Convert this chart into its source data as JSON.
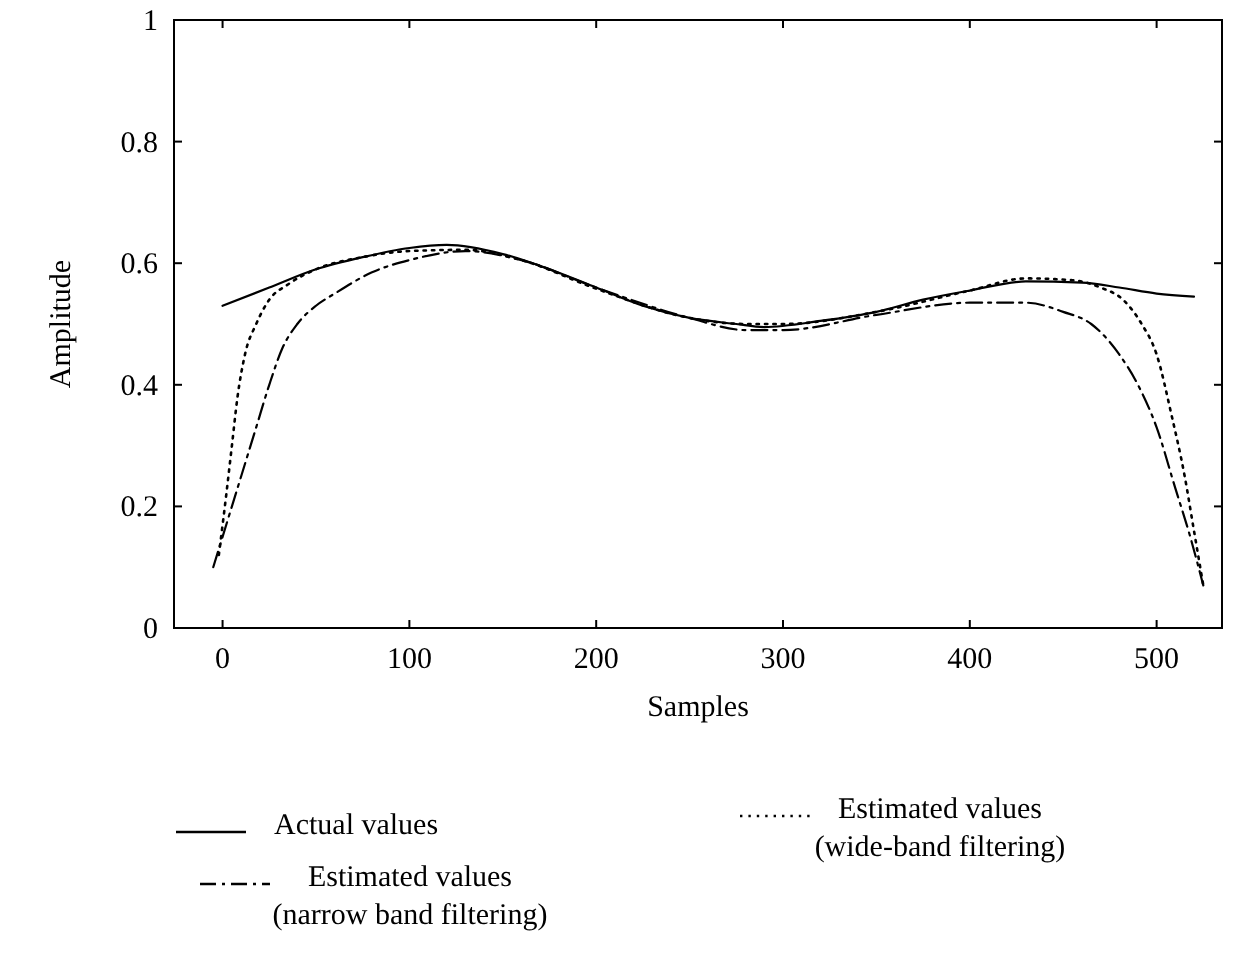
{
  "chart_data": {
    "type": "line",
    "xlabel": "Samples",
    "ylabel": "Amplitude",
    "xlim": [
      -26,
      535
    ],
    "ylim": [
      0,
      1
    ],
    "xticks": [
      0,
      100,
      200,
      300,
      400,
      500
    ],
    "yticks": [
      0,
      0.2,
      0.4,
      0.6,
      0.8,
      1
    ],
    "grid": false,
    "legend": "bottom",
    "series": [
      {
        "name": "Actual values",
        "color": "#000000",
        "line_style": "solid",
        "x": [
          0,
          25,
          50,
          75,
          100,
          120,
          150,
          175,
          200,
          225,
          250,
          275,
          290,
          320,
          350,
          375,
          400,
          430,
          460,
          480,
          500,
          520
        ],
        "values": [
          0.53,
          0.56,
          0.59,
          0.61,
          0.625,
          0.63,
          0.615,
          0.59,
          0.56,
          0.53,
          0.51,
          0.5,
          0.495,
          0.505,
          0.52,
          0.54,
          0.555,
          0.57,
          0.568,
          0.56,
          0.55,
          0.545
        ]
      },
      {
        "name": "Estimated values\n(narrow band filtering)",
        "color": "#000000",
        "line_style": "dashdot",
        "x": [
          -5,
          5,
          10,
          18,
          25,
          32,
          40,
          50,
          60,
          80,
          100,
          130,
          160,
          200,
          250,
          280,
          300,
          350,
          400,
          430,
          450,
          465,
          480,
          490,
          500,
          510,
          518,
          525
        ],
        "values": [
          0.1,
          0.2,
          0.25,
          0.33,
          0.4,
          0.46,
          0.5,
          0.53,
          0.55,
          0.585,
          0.605,
          0.62,
          0.605,
          0.56,
          0.51,
          0.49,
          0.49,
          0.515,
          0.535,
          0.535,
          0.52,
          0.5,
          0.45,
          0.4,
          0.33,
          0.23,
          0.15,
          0.07
        ]
      },
      {
        "name": "Estimated values\n(wide-band filtering)",
        "color": "#000000",
        "line_style": "dotted",
        "x": [
          -2,
          2,
          5,
          8,
          12,
          18,
          25,
          35,
          50,
          75,
          100,
          130,
          160,
          200,
          250,
          280,
          300,
          350,
          400,
          430,
          455,
          470,
          482,
          492,
          500,
          508,
          515,
          520,
          525
        ],
        "values": [
          0.12,
          0.22,
          0.3,
          0.38,
          0.45,
          0.5,
          0.54,
          0.565,
          0.59,
          0.61,
          0.62,
          0.622,
          0.605,
          0.558,
          0.51,
          0.5,
          0.5,
          0.52,
          0.555,
          0.575,
          0.572,
          0.56,
          0.54,
          0.5,
          0.45,
          0.35,
          0.25,
          0.16,
          0.07
        ]
      }
    ]
  }
}
